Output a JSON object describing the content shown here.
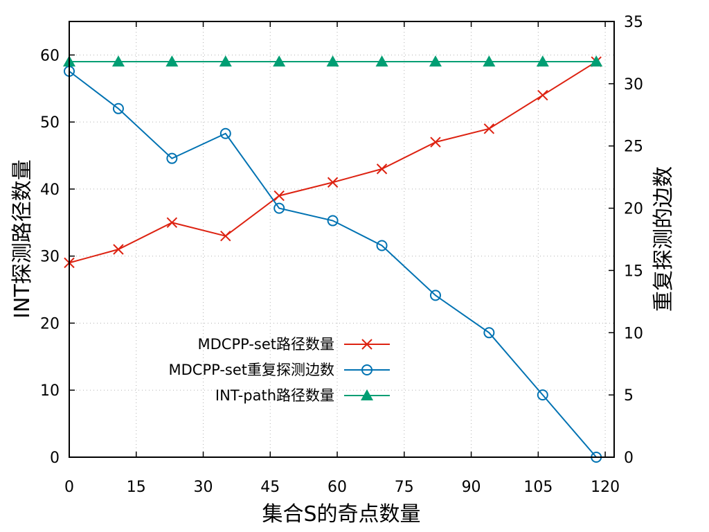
{
  "chart_data": {
    "type": "line",
    "title": "",
    "xlabel": "集合S的奇点数量",
    "ylabel": "INT探测路径数量",
    "y2label": "重复探测的边数",
    "xlim": [
      0,
      122
    ],
    "ylim": [
      0,
      65
    ],
    "y2lim": [
      0,
      35
    ],
    "xticks": [
      0,
      15,
      30,
      45,
      60,
      75,
      90,
      105,
      120
    ],
    "yticks": [
      0,
      10,
      20,
      30,
      40,
      50,
      60
    ],
    "y2ticks": [
      0,
      5,
      10,
      15,
      20,
      25,
      30,
      35
    ],
    "grid": true,
    "legend_position": "bottom-center",
    "x": [
      0,
      11,
      23,
      35,
      47,
      59,
      70,
      82,
      94,
      106,
      118
    ],
    "series": [
      {
        "name": "MDCPP-set路径数量",
        "axis": "left",
        "color": "#dd2211",
        "marker": "x",
        "values": [
          29,
          31,
          35,
          33,
          39,
          41,
          43,
          47,
          49,
          54,
          59
        ]
      },
      {
        "name": "MDCPP-set重复探测边数",
        "axis": "right",
        "color": "#0072b2",
        "marker": "circle",
        "values": [
          31,
          28,
          24,
          26,
          20,
          19,
          17,
          13,
          10,
          5,
          0
        ]
      },
      {
        "name": "INT-path路径数量",
        "axis": "left",
        "color": "#009e73",
        "marker": "triangle",
        "values": [
          59,
          59,
          59,
          59,
          59,
          59,
          59,
          59,
          59,
          59,
          59
        ]
      }
    ]
  }
}
